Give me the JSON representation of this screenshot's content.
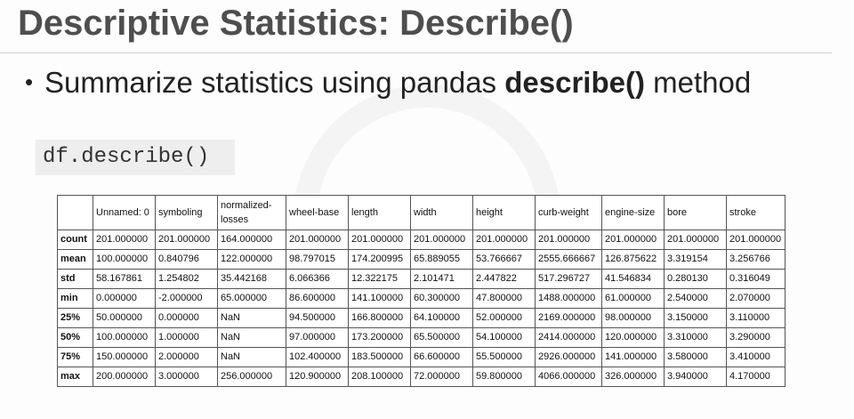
{
  "slide": {
    "title": "Descriptive Statistics: Describe()",
    "bullet_dot": "•",
    "bullet_prefix": "Summarize statistics using pandas ",
    "bullet_bold": "describe()",
    "bullet_suffix": " method",
    "code": "df.describe()"
  },
  "table": {
    "columns": [
      "",
      "Unnamed: 0",
      "symboling",
      "normalized-losses",
      "wheel-base",
      "length",
      "width",
      "height",
      "curb-weight",
      "engine-size",
      "bore",
      "stroke"
    ],
    "rows": [
      {
        "label": "count",
        "values": [
          "201.000000",
          "201.000000",
          "164.000000",
          "201.000000",
          "201.000000",
          "201.000000",
          "201.000000",
          "201.000000",
          "201.000000",
          "201.000000",
          "201.000000"
        ]
      },
      {
        "label": "mean",
        "values": [
          "100.000000",
          "0.840796",
          "122.000000",
          "98.797015",
          "174.200995",
          "65.889055",
          "53.766667",
          "2555.666667",
          "126.875622",
          "3.319154",
          "3.256766"
        ]
      },
      {
        "label": "std",
        "values": [
          "58.167861",
          "1.254802",
          "35.442168",
          "6.066366",
          "12.322175",
          "2.101471",
          "2.447822",
          "517.296727",
          "41.546834",
          "0.280130",
          "0.316049"
        ]
      },
      {
        "label": "min",
        "values": [
          "0.000000",
          "-2.000000",
          "65.000000",
          "86.600000",
          "141.100000",
          "60.300000",
          "47.800000",
          "1488.000000",
          "61.000000",
          "2.540000",
          "2.070000"
        ]
      },
      {
        "label": "25%",
        "values": [
          "50.000000",
          "0.000000",
          "NaN",
          "94.500000",
          "166.800000",
          "64.100000",
          "52.000000",
          "2169.000000",
          "98.000000",
          "3.150000",
          "3.110000"
        ]
      },
      {
        "label": "50%",
        "values": [
          "100.000000",
          "1.000000",
          "NaN",
          "97.000000",
          "173.200000",
          "65.500000",
          "54.100000",
          "2414.000000",
          "120.000000",
          "3.310000",
          "3.290000"
        ]
      },
      {
        "label": "75%",
        "values": [
          "150.000000",
          "2.000000",
          "NaN",
          "102.400000",
          "183.500000",
          "66.600000",
          "55.500000",
          "2926.000000",
          "141.000000",
          "3.580000",
          "3.410000"
        ]
      },
      {
        "label": "max",
        "values": [
          "200.000000",
          "3.000000",
          "256.000000",
          "120.900000",
          "208.100000",
          "72.000000",
          "59.800000",
          "4066.000000",
          "326.000000",
          "3.940000",
          "4.170000"
        ]
      }
    ]
  }
}
